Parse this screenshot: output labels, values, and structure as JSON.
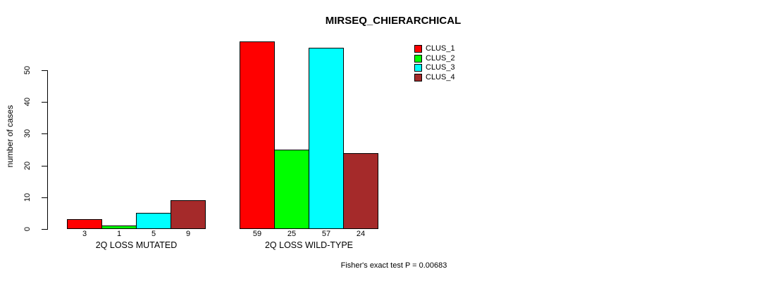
{
  "chart_data": {
    "type": "bar",
    "title": "MIRSEQ_CHIERARCHICAL",
    "ylabel": "number of cases",
    "xlabel": "",
    "ylim": [
      0,
      50
    ],
    "yticks": [
      0,
      10,
      20,
      30,
      40,
      50
    ],
    "grid": false,
    "legend_position": "top-right",
    "categories": [
      "2Q LOSS MUTATED",
      "2Q LOSS WILD-TYPE"
    ],
    "series": [
      {
        "name": "CLUS_1",
        "color": "#ff0000",
        "values": [
          3,
          59
        ]
      },
      {
        "name": "CLUS_2",
        "color": "#00ff00",
        "values": [
          1,
          25
        ]
      },
      {
        "name": "CLUS_3",
        "color": "#00ffff",
        "values": [
          5,
          57
        ]
      },
      {
        "name": "CLUS_4",
        "color": "#a52a2a",
        "values": [
          9,
          24
        ]
      }
    ],
    "bar_value_labels": [
      [
        "3",
        "1",
        "5",
        "9"
      ],
      [
        "59",
        "25",
        "57",
        "24"
      ]
    ]
  },
  "footnote": "Fisher's exact test P = 0.00683"
}
